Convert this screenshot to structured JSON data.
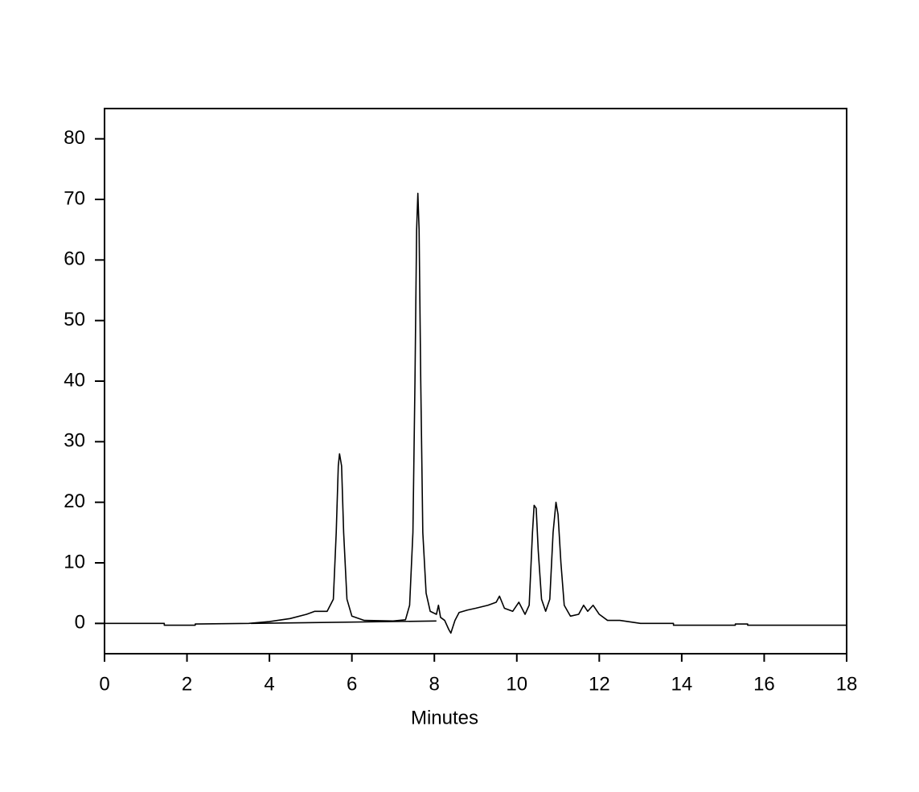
{
  "chart_data": {
    "type": "line",
    "x_label": "Minutes",
    "xlim": [
      0,
      18
    ],
    "ylim": [
      -5,
      85
    ],
    "xticks": [
      0,
      2,
      4,
      6,
      8,
      10,
      12,
      14,
      16,
      18
    ],
    "yticks": [
      0,
      10,
      20,
      30,
      40,
      50,
      60,
      70,
      80
    ],
    "series": [
      {
        "color": "#000000",
        "x": [
          0,
          1.45,
          1.45,
          2.2,
          2.2,
          3.5,
          4.0,
          4.5,
          4.9,
          5.1,
          5.4,
          5.55,
          5.62,
          5.67,
          5.7,
          5.75,
          5.8,
          5.88,
          6.0,
          6.3,
          7.0,
          7.3,
          7.4,
          7.48,
          7.53,
          7.57,
          7.6,
          7.63,
          7.67,
          7.72,
          7.8,
          7.9,
          8.05,
          8.1,
          8.15,
          8.25,
          8.35,
          8.4,
          8.5,
          8.6,
          8.8,
          9.0,
          9.3,
          9.5,
          9.58,
          9.7,
          9.9,
          10.05,
          10.2,
          10.3,
          10.38,
          10.42,
          10.47,
          10.52,
          10.6,
          10.7,
          10.8,
          10.88,
          10.95,
          11.0,
          11.07,
          11.15,
          11.3,
          11.5,
          11.62,
          11.72,
          11.85,
          12.0,
          12.2,
          12.5,
          13.0,
          13.8,
          13.8,
          15.3,
          15.3,
          15.6,
          15.6,
          18
        ],
        "values": [
          0,
          0,
          -0.3,
          -0.3,
          -0.1,
          0,
          0.3,
          0.8,
          1.5,
          2.0,
          2.0,
          4,
          15,
          26,
          28,
          26,
          15,
          4,
          1.2,
          0.5,
          0.4,
          0.6,
          3,
          15,
          40,
          65,
          71,
          65,
          40,
          15,
          5,
          2,
          1.5,
          3,
          1,
          0.5,
          -1,
          -1.6,
          0.5,
          1.8,
          2.2,
          2.5,
          3,
          3.5,
          4.5,
          2.5,
          2,
          3.5,
          1.5,
          3,
          15,
          19.5,
          19,
          12,
          4,
          2,
          4,
          15,
          20,
          18,
          10,
          3,
          1.2,
          1.5,
          3,
          2,
          3,
          1.5,
          0.5,
          0.5,
          0,
          0,
          -0.3,
          -0.3,
          -0.1,
          -0.1,
          -0.3,
          -0.3
        ]
      },
      {
        "color": "#000000",
        "x": [
          3.55,
          8.05
        ],
        "values": [
          0,
          0.4
        ]
      }
    ]
  }
}
